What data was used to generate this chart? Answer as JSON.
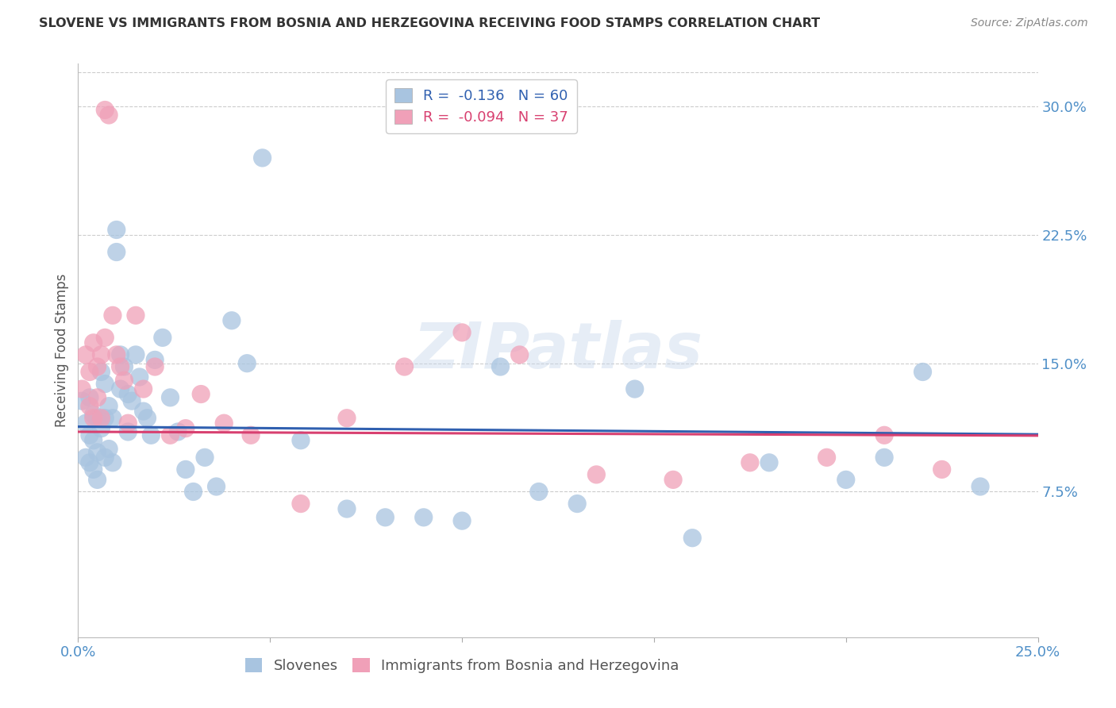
{
  "title": "SLOVENE VS IMMIGRANTS FROM BOSNIA AND HERZEGOVINA RECEIVING FOOD STAMPS CORRELATION CHART",
  "source": "Source: ZipAtlas.com",
  "ylabel": "Receiving Food Stamps",
  "x_tick_values": [
    0.0,
    0.05,
    0.1,
    0.15,
    0.2,
    0.25
  ],
  "x_tick_labels": [
    "0.0%",
    "",
    "",
    "",
    "",
    "25.0%"
  ],
  "y_tick_labels": [
    "7.5%",
    "15.0%",
    "22.5%",
    "30.0%"
  ],
  "y_tick_values": [
    0.075,
    0.15,
    0.225,
    0.3
  ],
  "xlim": [
    0.0,
    0.25
  ],
  "ylim": [
    -0.01,
    0.325
  ],
  "blue_color": "#a8c4e0",
  "pink_color": "#f0a0b8",
  "blue_line_color": "#3060b0",
  "pink_line_color": "#d84070",
  "axis_label_color": "#5090c8",
  "title_color": "#333333",
  "source_color": "#888888",
  "watermark_text": "ZIPatlas",
  "background_color": "#ffffff",
  "grid_color": "#cccccc",
  "slovene_x": [
    0.001,
    0.002,
    0.002,
    0.003,
    0.003,
    0.003,
    0.004,
    0.004,
    0.004,
    0.005,
    0.005,
    0.005,
    0.006,
    0.006,
    0.007,
    0.007,
    0.007,
    0.008,
    0.008,
    0.009,
    0.009,
    0.01,
    0.01,
    0.011,
    0.011,
    0.012,
    0.013,
    0.013,
    0.014,
    0.015,
    0.016,
    0.017,
    0.018,
    0.019,
    0.02,
    0.022,
    0.024,
    0.026,
    0.028,
    0.03,
    0.033,
    0.036,
    0.04,
    0.044,
    0.048,
    0.058,
    0.07,
    0.08,
    0.09,
    0.1,
    0.11,
    0.12,
    0.13,
    0.145,
    0.16,
    0.18,
    0.2,
    0.21,
    0.22,
    0.235
  ],
  "slovene_y": [
    0.128,
    0.115,
    0.095,
    0.13,
    0.108,
    0.092,
    0.12,
    0.105,
    0.088,
    0.118,
    0.098,
    0.082,
    0.145,
    0.112,
    0.138,
    0.118,
    0.095,
    0.125,
    0.1,
    0.118,
    0.092,
    0.228,
    0.215,
    0.155,
    0.135,
    0.148,
    0.132,
    0.11,
    0.128,
    0.155,
    0.142,
    0.122,
    0.118,
    0.108,
    0.152,
    0.165,
    0.13,
    0.11,
    0.088,
    0.075,
    0.095,
    0.078,
    0.175,
    0.15,
    0.27,
    0.105,
    0.065,
    0.06,
    0.06,
    0.058,
    0.148,
    0.075,
    0.068,
    0.135,
    0.048,
    0.092,
    0.082,
    0.095,
    0.145,
    0.078
  ],
  "bosnia_x": [
    0.001,
    0.002,
    0.003,
    0.003,
    0.004,
    0.004,
    0.005,
    0.005,
    0.006,
    0.006,
    0.007,
    0.007,
    0.008,
    0.009,
    0.01,
    0.011,
    0.012,
    0.013,
    0.015,
    0.017,
    0.02,
    0.024,
    0.028,
    0.032,
    0.038,
    0.045,
    0.058,
    0.07,
    0.085,
    0.1,
    0.115,
    0.135,
    0.155,
    0.175,
    0.195,
    0.21,
    0.225
  ],
  "bosnia_y": [
    0.135,
    0.155,
    0.145,
    0.125,
    0.162,
    0.118,
    0.148,
    0.13,
    0.155,
    0.118,
    0.165,
    0.298,
    0.295,
    0.178,
    0.155,
    0.148,
    0.14,
    0.115,
    0.178,
    0.135,
    0.148,
    0.108,
    0.112,
    0.132,
    0.115,
    0.108,
    0.068,
    0.118,
    0.148,
    0.168,
    0.155,
    0.085,
    0.082,
    0.092,
    0.095,
    0.108,
    0.088
  ],
  "blue_intercept": 0.113,
  "blue_slope": -0.018,
  "pink_intercept": 0.11,
  "pink_slope": -0.009
}
